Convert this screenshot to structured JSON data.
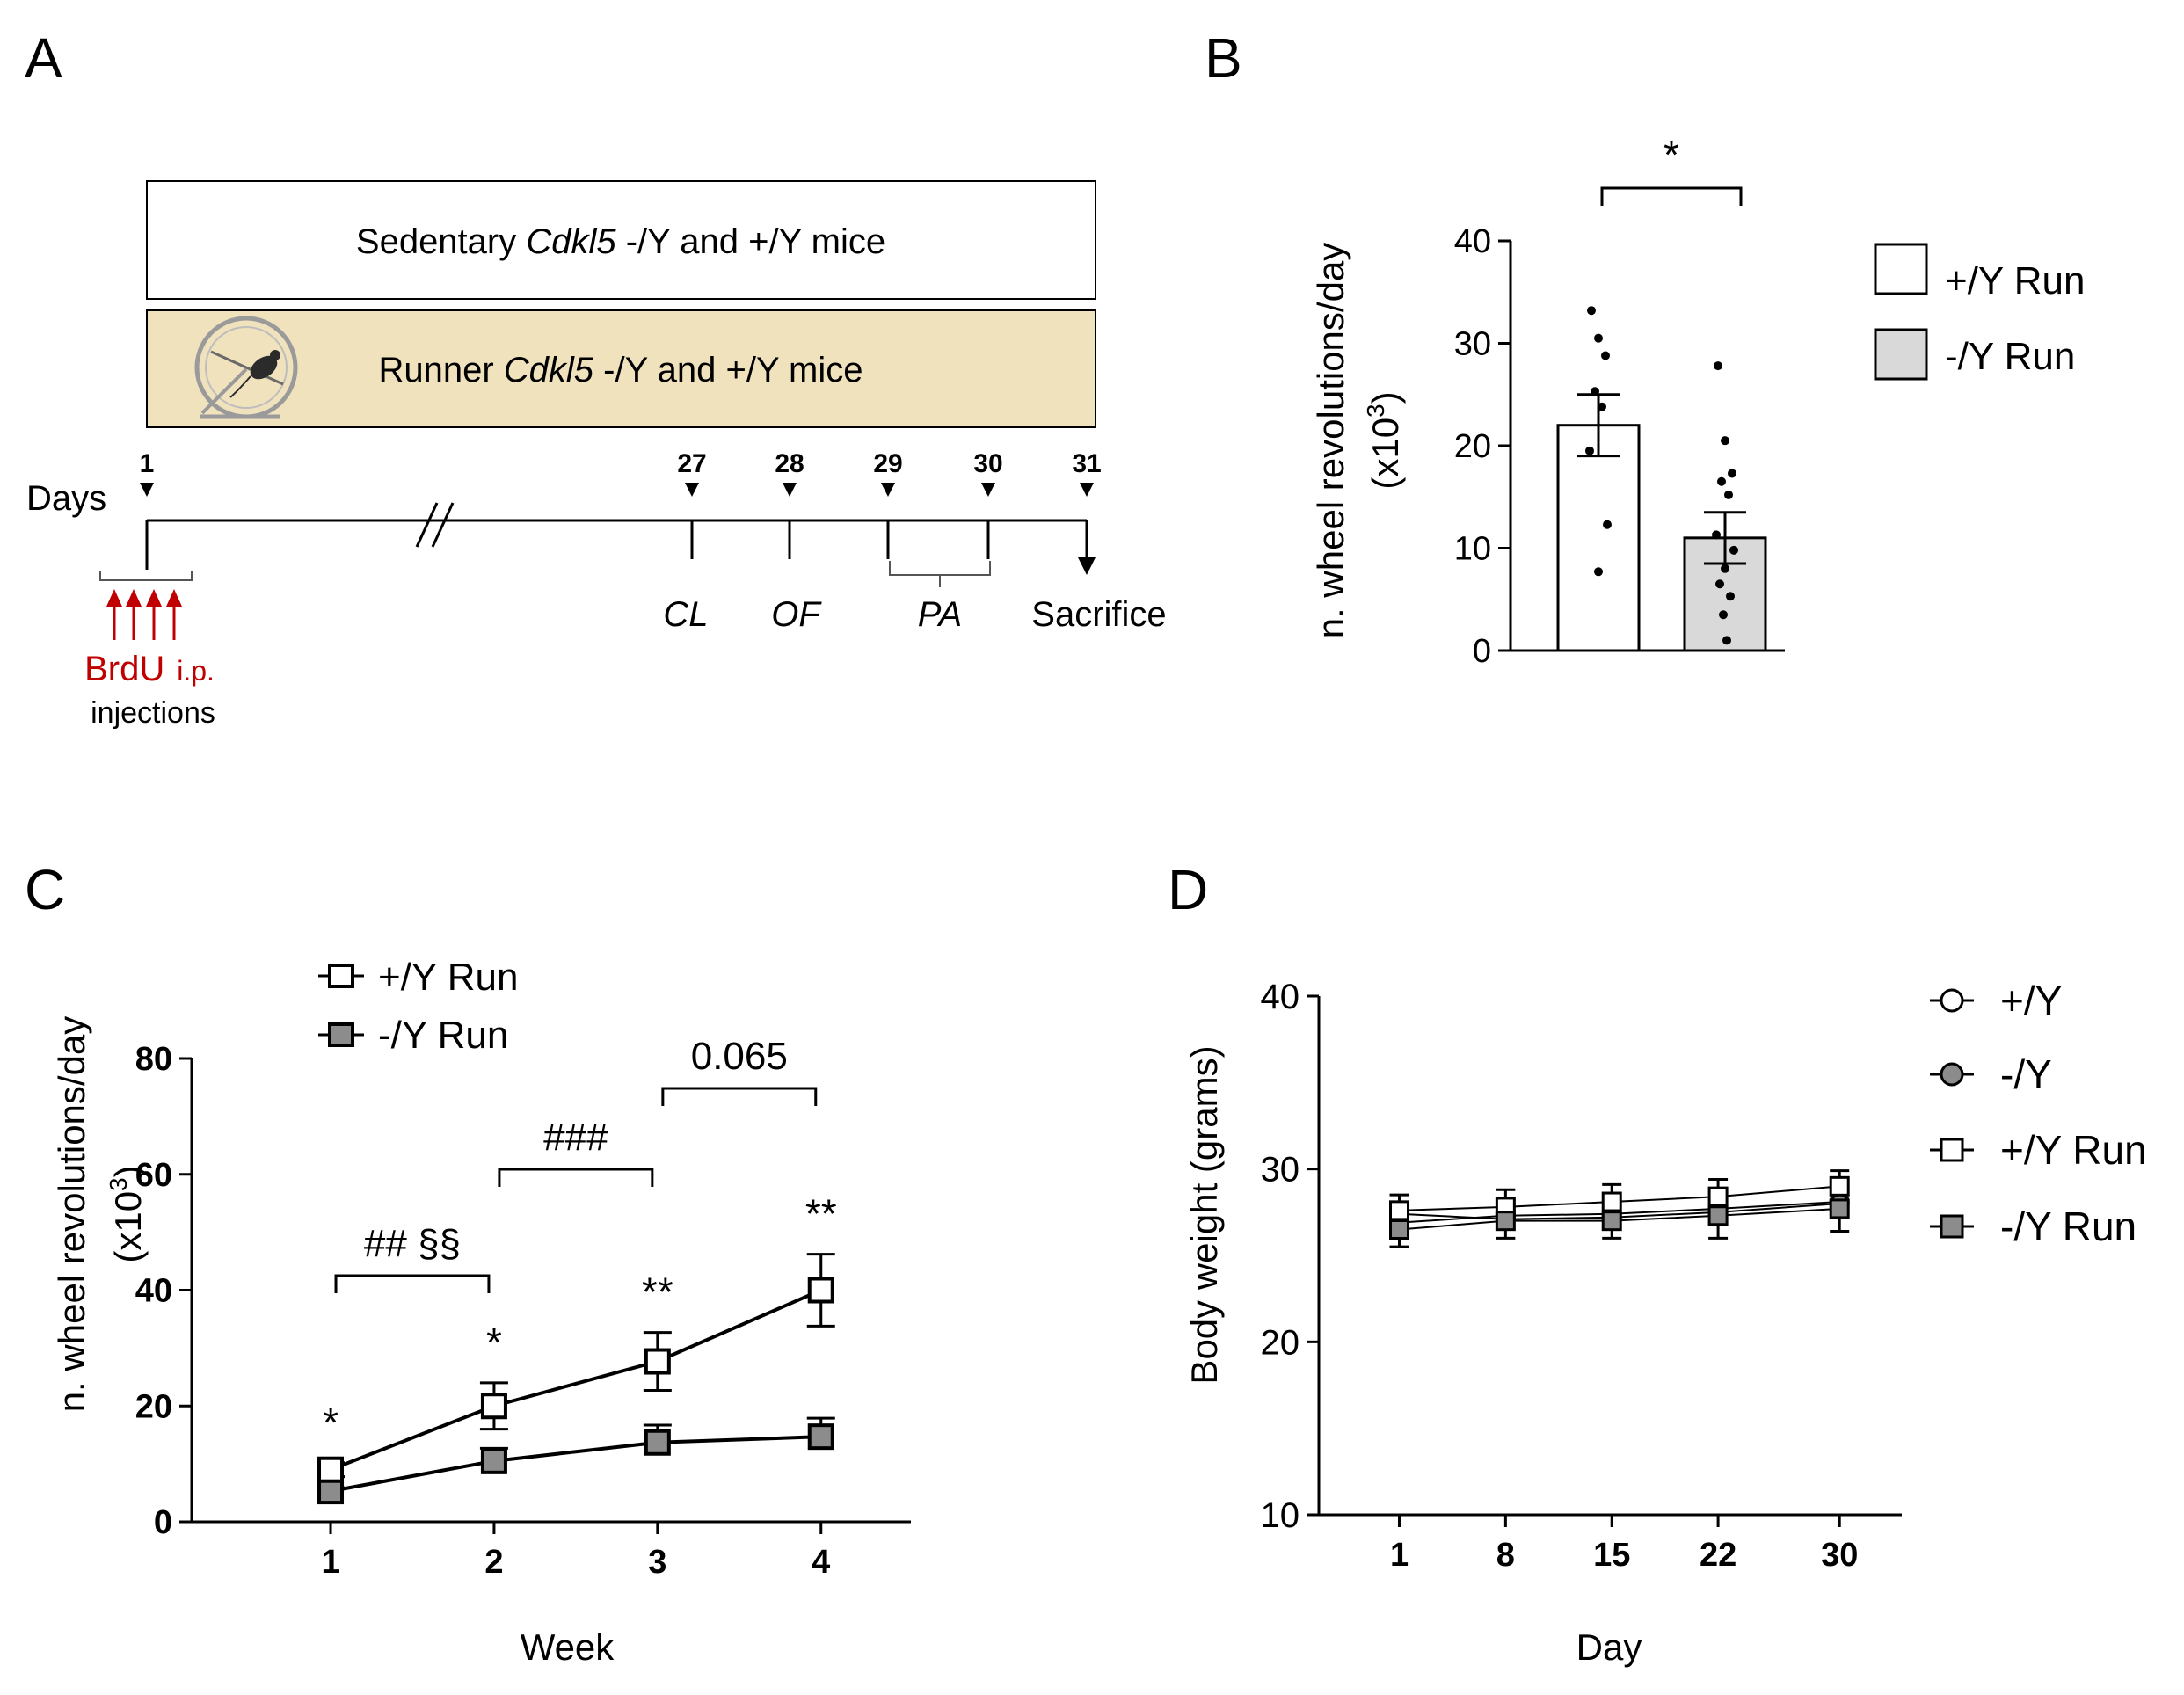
{
  "panels": {
    "A": {
      "letter": "A",
      "sedentary": {
        "prefix": "Sedentary ",
        "gene": "Cdkl5",
        "suffix": " -/Y and +/Y mice"
      },
      "runner": {
        "prefix": "Runner ",
        "gene": "Cdkl5",
        "suffix": " -/Y and +/Y mice"
      },
      "days_label": "Days",
      "day_ticks": [
        "1",
        "27",
        "28",
        "29",
        "30",
        "31"
      ],
      "tests": [
        "CL",
        "OF",
        "PA"
      ],
      "sacrifice": "Sacrifice",
      "brdu": {
        "line1_main": "BrdU",
        "line1_small": "i.p.",
        "line2": "injections"
      },
      "colors": {
        "runner_box": "#f0e2bd",
        "brdu": "#c00000"
      }
    },
    "B": {
      "letter": "B"
    },
    "C": {
      "letter": "C"
    },
    "D": {
      "letter": "D"
    }
  },
  "chart_data": [
    {
      "panel": "B",
      "type": "bar",
      "categories": [
        "+/Y Run",
        "-/Y Run"
      ],
      "values": [
        22,
        11
      ],
      "sem": [
        3,
        2.5
      ],
      "points": [
        [
          33.2,
          30.5,
          28.8,
          25.3,
          23.8,
          19.5,
          12.3,
          7.7
        ],
        [
          27.8,
          20.5,
          17.3,
          16.5,
          15.2,
          11.3,
          9.8,
          8.0,
          6.5,
          5.3,
          3.5,
          1.0
        ]
      ],
      "ylabel_main": "n. wheel revolutions/day",
      "ylabel_unit": {
        "pre": "(x10",
        "sup": "3",
        "post": ")"
      },
      "ylim": [
        0,
        40
      ],
      "yticks": [
        0,
        10,
        20,
        30,
        40
      ],
      "ytick_labels": [
        "0",
        "10",
        "20",
        "30",
        "40"
      ],
      "legend": [
        "+/Y Run",
        "-/Y Run"
      ],
      "annotation": "*",
      "colors": {
        "wt": "#ffffff",
        "ko": "#d9d9d9"
      }
    },
    {
      "panel": "C",
      "type": "line",
      "x": [
        1,
        2,
        3,
        4
      ],
      "xtick_labels": [
        "1",
        "2",
        "3",
        "4"
      ],
      "xlim": [
        0.15,
        4.55
      ],
      "series": [
        {
          "name": "+/Y Run",
          "values": [
            9,
            20,
            27.7,
            40
          ],
          "sem": [
            1.2,
            4,
            5,
            6.2
          ],
          "fill": "#ffffff"
        },
        {
          "name": "-/Y Run",
          "values": [
            5.3,
            10.5,
            13.7,
            14.7
          ],
          "sem": [
            0.6,
            2.2,
            3,
            3.2
          ],
          "fill": "#8c8c8c"
        }
      ],
      "xlabel": "Week",
      "ylabel_main": "n. wheel revolutions/day",
      "ylabel_unit": {
        "pre": "(x10",
        "sup": "3",
        "post": ")"
      },
      "ylim": [
        0,
        80
      ],
      "yticks": [
        0,
        20,
        40,
        60,
        80
      ],
      "ytick_labels": [
        "0",
        "20",
        "40",
        "60",
        "80"
      ],
      "point_stars": [
        "*",
        "*",
        "**",
        "**"
      ],
      "brackets": [
        {
          "from": 1,
          "to": 2,
          "label": "## §§"
        },
        {
          "from": 2,
          "to": 3,
          "label": "###"
        },
        {
          "from": 3,
          "to": 4,
          "label": "0.065"
        }
      ]
    },
    {
      "panel": "D",
      "type": "line",
      "x": [
        1,
        8,
        15,
        22,
        30
      ],
      "xtick_labels": [
        "1",
        "8",
        "15",
        "22",
        "30"
      ],
      "xlim": [
        -4.3,
        34.1
      ],
      "series": [
        {
          "name": "+/Y",
          "marker": "circle",
          "fill": "#ffffff",
          "values": [
            26.9,
            27.3,
            27.4,
            27.7,
            28.1
          ],
          "sem": [
            0.7,
            0.7,
            0.7,
            0.8,
            0.8
          ]
        },
        {
          "name": "-/Y",
          "marker": "circle",
          "fill": "#8c8c8c",
          "values": [
            27.4,
            27.1,
            27.2,
            27.5,
            28.0
          ],
          "sem": [
            0.6,
            0.6,
            0.6,
            0.7,
            0.7
          ]
        },
        {
          "name": "+/Y Run",
          "marker": "square",
          "fill": "#ffffff",
          "values": [
            27.6,
            27.8,
            28.1,
            28.4,
            29.0
          ],
          "sem": [
            0.9,
            1.0,
            1.0,
            1.0,
            0.9
          ]
        },
        {
          "name": "-/Y Run",
          "marker": "square",
          "fill": "#8c8c8c",
          "values": [
            26.5,
            27.0,
            27.0,
            27.3,
            27.7
          ],
          "sem": [
            1.0,
            1.0,
            1.0,
            1.3,
            1.3
          ]
        }
      ],
      "xlabel": "Day",
      "ylabel": "Body weight (grams)",
      "ylim": [
        10,
        40
      ],
      "yticks": [
        10,
        20,
        30,
        40
      ],
      "ytick_labels": [
        "10",
        "20",
        "30",
        "40"
      ]
    }
  ]
}
